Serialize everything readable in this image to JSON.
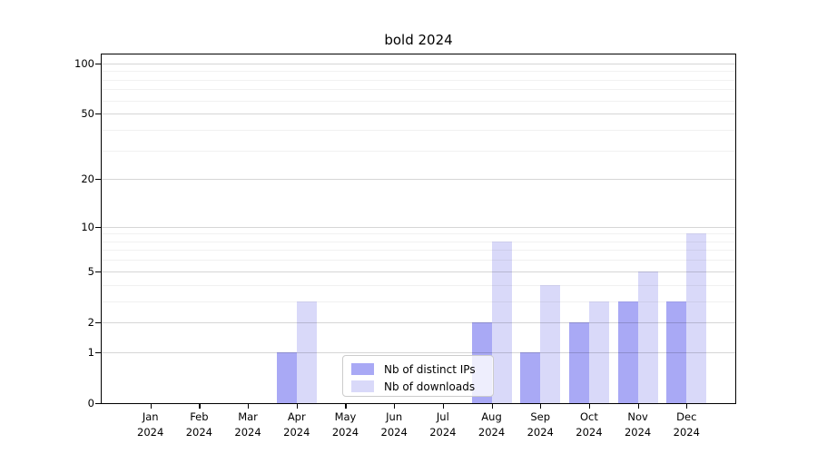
{
  "title": "bold 2024",
  "chart_data": {
    "type": "bar",
    "title": "bold 2024",
    "categories": [
      "Jan 2024",
      "Feb 2024",
      "Mar 2024",
      "Apr 2024",
      "May 2024",
      "Jun 2024",
      "Jul 2024",
      "Aug 2024",
      "Sep 2024",
      "Oct 2024",
      "Nov 2024",
      "Dec 2024"
    ],
    "series": [
      {
        "name": "Nb of distinct IPs",
        "color": "#a9a9f5",
        "values": [
          0,
          0,
          0,
          1,
          0,
          0,
          0,
          2,
          1,
          2,
          3,
          3
        ]
      },
      {
        "name": "Nb of downloads",
        "color": "#d9d9f9",
        "values": [
          0,
          0,
          0,
          3,
          0,
          0,
          0,
          8,
          4,
          3,
          5,
          9
        ]
      }
    ],
    "yscale": "log1p",
    "y_major_ticks": [
      0,
      1,
      2,
      5,
      10,
      20,
      50,
      100
    ],
    "y_minor_gridlines": [
      3,
      4,
      6,
      7,
      8,
      9,
      30,
      40,
      60,
      70,
      80,
      90
    ],
    "y_axis_max": 113,
    "xlabel": "",
    "ylabel": "",
    "legend": {
      "position": "lower center",
      "labels": [
        "Nb of distinct IPs",
        "Nb of downloads"
      ]
    },
    "grid": "horizontal major+minor, drawn above bars"
  }
}
